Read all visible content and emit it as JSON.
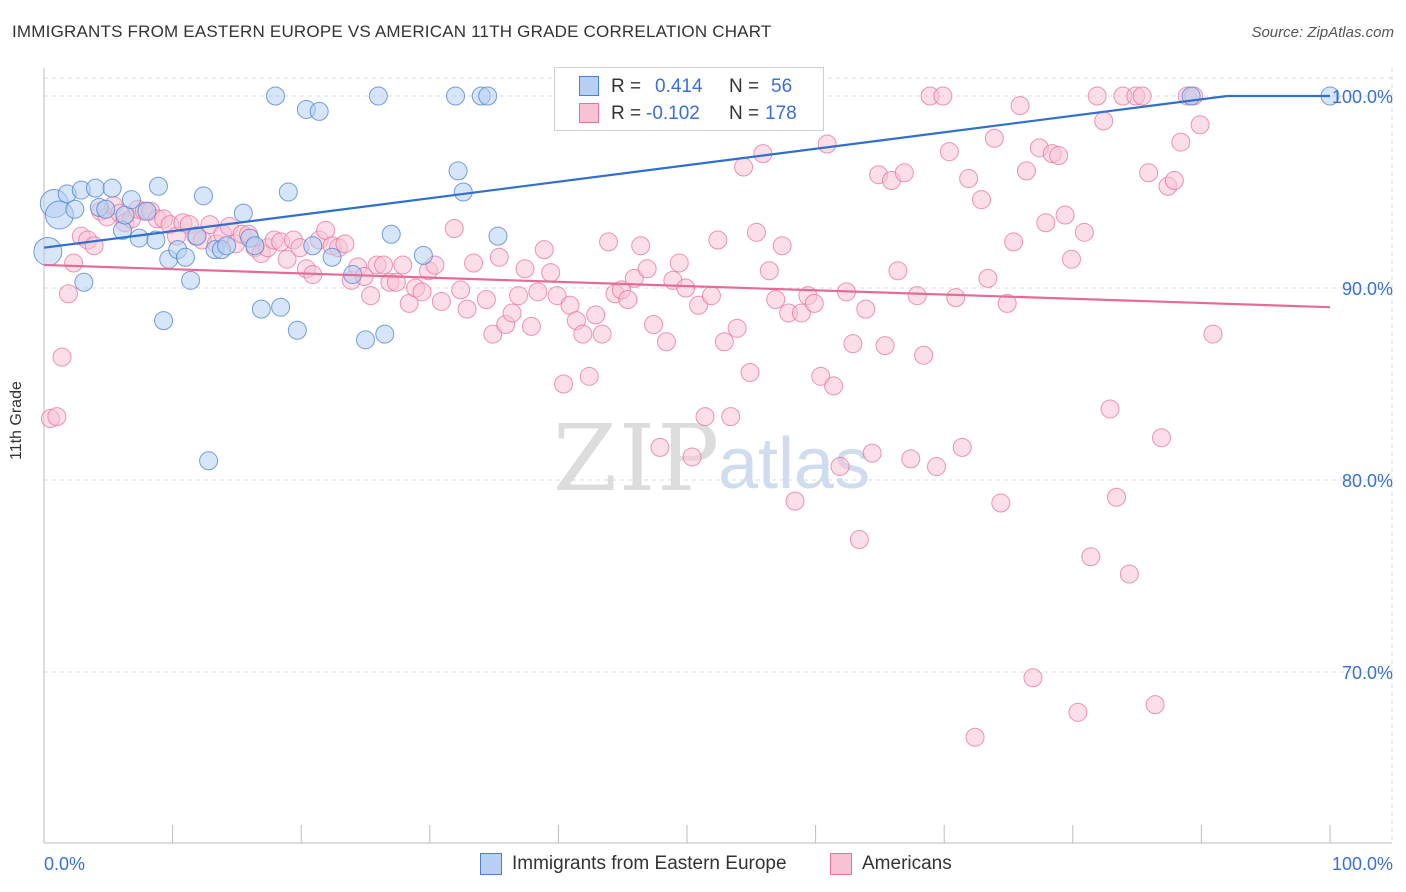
{
  "title": "IMMIGRANTS FROM EASTERN EUROPE VS AMERICAN 11TH GRADE CORRELATION CHART",
  "source": "Source: ZipAtlas.com",
  "watermark": {
    "zip": "ZIP",
    "atlas": "atlas"
  },
  "colors": {
    "blue": "#4a7fd4",
    "blue_fill": "#b7cff2",
    "pink": "#e8719b",
    "pink_fill": "#f7c2d4",
    "axis_text": "#3a6fd8",
    "grid": "#d8d8d8"
  },
  "legend_top": {
    "rows": [
      {
        "r_label": "R =",
        "r_value": "0.414",
        "n_label": "N =",
        "n_value": "56"
      },
      {
        "r_label": "R =",
        "r_value": "-0.102",
        "n_label": "N =",
        "n_value": "178"
      }
    ]
  },
  "legend_bottom": [
    "Immigrants from Eastern Europe",
    "Americans"
  ],
  "chart_data": {
    "type": "scatter",
    "xlabel": "",
    "ylabel": "11th Grade",
    "xlim": [
      0,
      100
    ],
    "ylim": [
      59,
      101.5
    ],
    "x_tick_labels": [
      "0.0%",
      "100.0%"
    ],
    "y_ticks": [
      70,
      80,
      90,
      100
    ],
    "y_tick_labels": [
      "70.0%",
      "80.0%",
      "90.0%",
      "100.0%"
    ],
    "grid": true,
    "series": [
      {
        "name": "Immigrants from Eastern Europe",
        "color": "blue",
        "trend": [
          [
            0,
            92.1
          ],
          [
            92,
            100.0
          ]
        ],
        "points": [
          [
            0.3,
            91.9
          ],
          [
            0.8,
            94.4
          ],
          [
            1.2,
            93.8
          ],
          [
            1.8,
            94.9
          ],
          [
            2.4,
            94.1
          ],
          [
            2.9,
            95.1
          ],
          [
            3.1,
            90.3
          ],
          [
            4.0,
            95.2
          ],
          [
            4.3,
            94.2
          ],
          [
            4.8,
            94.1
          ],
          [
            5.3,
            95.2
          ],
          [
            6.1,
            93.0
          ],
          [
            6.3,
            93.8
          ],
          [
            6.8,
            94.6
          ],
          [
            7.4,
            92.6
          ],
          [
            8.0,
            94.0
          ],
          [
            8.7,
            92.5
          ],
          [
            8.9,
            95.3
          ],
          [
            9.3,
            88.3
          ],
          [
            9.7,
            91.5
          ],
          [
            10.4,
            92.0
          ],
          [
            11.0,
            91.6
          ],
          [
            11.4,
            90.4
          ],
          [
            11.9,
            92.7
          ],
          [
            12.4,
            94.8
          ],
          [
            12.8,
            81.0
          ],
          [
            13.3,
            92.0
          ],
          [
            13.8,
            92.0
          ],
          [
            14.2,
            92.2
          ],
          [
            15.5,
            93.9
          ],
          [
            16.0,
            92.6
          ],
          [
            16.4,
            92.2
          ],
          [
            16.9,
            88.9
          ],
          [
            18.0,
            100.0
          ],
          [
            18.4,
            89.0
          ],
          [
            19.0,
            95.0
          ],
          [
            19.7,
            87.8
          ],
          [
            20.4,
            99.3
          ],
          [
            20.9,
            92.2
          ],
          [
            21.4,
            99.2
          ],
          [
            22.4,
            91.6
          ],
          [
            24.0,
            90.7
          ],
          [
            25.0,
            87.3
          ],
          [
            26.0,
            100.0
          ],
          [
            26.5,
            87.6
          ],
          [
            27.0,
            92.8
          ],
          [
            29.5,
            91.7
          ],
          [
            32.0,
            100.0
          ],
          [
            32.2,
            96.1
          ],
          [
            32.6,
            95.0
          ],
          [
            34.0,
            100.0
          ],
          [
            34.5,
            100.0
          ],
          [
            35.3,
            92.7
          ],
          [
            50.0,
            100.0
          ],
          [
            89.2,
            100.0
          ],
          [
            100.0,
            100.0
          ]
        ]
      },
      {
        "name": "Americans",
        "color": "pink",
        "trend": [
          [
            0,
            91.2
          ],
          [
            100,
            89.0
          ]
        ],
        "points": [
          [
            0.5,
            83.2
          ],
          [
            1.0,
            83.3
          ],
          [
            1.4,
            86.4
          ],
          [
            1.9,
            89.7
          ],
          [
            2.3,
            91.3
          ],
          [
            2.9,
            92.7
          ],
          [
            3.4,
            92.5
          ],
          [
            3.9,
            92.2
          ],
          [
            4.4,
            94.0
          ],
          [
            4.9,
            93.7
          ],
          [
            5.4,
            94.3
          ],
          [
            5.9,
            93.9
          ],
          [
            6.3,
            93.4
          ],
          [
            6.8,
            93.6
          ],
          [
            7.3,
            94.1
          ],
          [
            7.8,
            94.0
          ],
          [
            8.3,
            94.0
          ],
          [
            8.8,
            93.6
          ],
          [
            9.3,
            93.6
          ],
          [
            9.8,
            93.3
          ],
          [
            10.3,
            92.7
          ],
          [
            10.8,
            93.4
          ],
          [
            11.3,
            93.3
          ],
          [
            11.8,
            92.7
          ],
          [
            12.3,
            92.5
          ],
          [
            12.9,
            93.3
          ],
          [
            13.4,
            92.3
          ],
          [
            13.9,
            92.8
          ],
          [
            14.4,
            93.2
          ],
          [
            14.9,
            92.3
          ],
          [
            15.4,
            92.8
          ],
          [
            15.9,
            92.8
          ],
          [
            16.4,
            92.1
          ],
          [
            16.9,
            91.8
          ],
          [
            17.4,
            92.1
          ],
          [
            17.9,
            92.5
          ],
          [
            18.4,
            92.4
          ],
          [
            18.9,
            91.5
          ],
          [
            19.4,
            92.5
          ],
          [
            19.9,
            92.1
          ],
          [
            20.4,
            91.0
          ],
          [
            20.9,
            90.7
          ],
          [
            21.4,
            92.5
          ],
          [
            21.9,
            93.0
          ],
          [
            22.4,
            92.2
          ],
          [
            22.9,
            92.1
          ],
          [
            23.4,
            92.3
          ],
          [
            23.9,
            90.4
          ],
          [
            24.4,
            91.1
          ],
          [
            24.9,
            90.6
          ],
          [
            25.4,
            89.6
          ],
          [
            25.9,
            91.2
          ],
          [
            26.4,
            91.2
          ],
          [
            26.9,
            90.3
          ],
          [
            27.4,
            90.3
          ],
          [
            27.9,
            91.2
          ],
          [
            28.4,
            89.2
          ],
          [
            28.9,
            90.0
          ],
          [
            29.4,
            89.8
          ],
          [
            29.9,
            90.9
          ],
          [
            30.4,
            91.2
          ],
          [
            30.9,
            89.3
          ],
          [
            31.9,
            93.1
          ],
          [
            32.4,
            89.9
          ],
          [
            32.9,
            88.9
          ],
          [
            33.4,
            91.3
          ],
          [
            34.4,
            89.4
          ],
          [
            34.9,
            87.6
          ],
          [
            35.4,
            91.6
          ],
          [
            35.9,
            88.1
          ],
          [
            36.4,
            88.7
          ],
          [
            36.9,
            89.6
          ],
          [
            37.4,
            91.0
          ],
          [
            37.9,
            88.0
          ],
          [
            38.4,
            89.8
          ],
          [
            38.9,
            92.0
          ],
          [
            39.4,
            90.8
          ],
          [
            39.9,
            89.6
          ],
          [
            40.4,
            85.0
          ],
          [
            40.9,
            89.1
          ],
          [
            41.4,
            88.3
          ],
          [
            41.9,
            87.6
          ],
          [
            42.4,
            85.4
          ],
          [
            42.9,
            88.6
          ],
          [
            43.4,
            87.6
          ],
          [
            43.9,
            92.4
          ],
          [
            44.4,
            89.7
          ],
          [
            44.9,
            89.9
          ],
          [
            45.4,
            89.4
          ],
          [
            45.9,
            90.5
          ],
          [
            46.4,
            92.2
          ],
          [
            46.9,
            91.0
          ],
          [
            47.4,
            88.1
          ],
          [
            47.9,
            81.7
          ],
          [
            48.4,
            87.2
          ],
          [
            48.9,
            90.4
          ],
          [
            49.4,
            91.3
          ],
          [
            49.9,
            90.0
          ],
          [
            50.4,
            81.2
          ],
          [
            50.9,
            89.1
          ],
          [
            51.4,
            83.3
          ],
          [
            51.9,
            89.6
          ],
          [
            52.4,
            92.5
          ],
          [
            52.9,
            87.2
          ],
          [
            53.4,
            83.3
          ],
          [
            53.9,
            87.9
          ],
          [
            54.4,
            96.3
          ],
          [
            54.9,
            85.6
          ],
          [
            55.4,
            92.9
          ],
          [
            55.9,
            97.0
          ],
          [
            56.4,
            90.9
          ],
          [
            56.9,
            89.4
          ],
          [
            57.4,
            92.2
          ],
          [
            57.9,
            88.7
          ],
          [
            58.4,
            78.9
          ],
          [
            58.9,
            88.7
          ],
          [
            59.4,
            89.6
          ],
          [
            59.9,
            89.2
          ],
          [
            60.4,
            85.4
          ],
          [
            60.9,
            97.5
          ],
          [
            61.4,
            84.9
          ],
          [
            61.9,
            80.7
          ],
          [
            62.4,
            89.8
          ],
          [
            62.9,
            87.1
          ],
          [
            63.4,
            76.9
          ],
          [
            63.9,
            88.9
          ],
          [
            64.4,
            81.4
          ],
          [
            64.9,
            95.9
          ],
          [
            65.4,
            87.0
          ],
          [
            65.9,
            95.6
          ],
          [
            66.4,
            90.9
          ],
          [
            66.9,
            96.0
          ],
          [
            67.4,
            81.1
          ],
          [
            67.9,
            89.6
          ],
          [
            68.4,
            86.5
          ],
          [
            68.9,
            100.0
          ],
          [
            69.4,
            80.7
          ],
          [
            69.9,
            100.0
          ],
          [
            70.4,
            97.1
          ],
          [
            70.9,
            89.5
          ],
          [
            71.4,
            81.7
          ],
          [
            71.9,
            95.7
          ],
          [
            72.4,
            66.6
          ],
          [
            72.9,
            94.6
          ],
          [
            73.4,
            90.5
          ],
          [
            73.9,
            97.8
          ],
          [
            74.4,
            78.8
          ],
          [
            74.9,
            89.2
          ],
          [
            75.4,
            92.4
          ],
          [
            75.9,
            99.5
          ],
          [
            76.4,
            96.1
          ],
          [
            76.9,
            69.7
          ],
          [
            77.4,
            97.3
          ],
          [
            77.9,
            93.4
          ],
          [
            78.4,
            97.0
          ],
          [
            78.9,
            96.9
          ],
          [
            79.4,
            93.8
          ],
          [
            79.9,
            91.5
          ],
          [
            80.4,
            67.9
          ],
          [
            80.9,
            92.9
          ],
          [
            81.4,
            76.0
          ],
          [
            81.9,
            100.0
          ],
          [
            82.4,
            98.7
          ],
          [
            82.9,
            83.7
          ],
          [
            83.4,
            79.1
          ],
          [
            83.9,
            100.0
          ],
          [
            84.4,
            75.1
          ],
          [
            84.9,
            100.0
          ],
          [
            85.4,
            100.0
          ],
          [
            85.9,
            96.0
          ],
          [
            86.4,
            68.3
          ],
          [
            86.9,
            82.2
          ],
          [
            87.4,
            95.3
          ],
          [
            87.9,
            95.6
          ],
          [
            88.4,
            97.6
          ],
          [
            88.9,
            100.0
          ],
          [
            89.4,
            100.0
          ],
          [
            89.9,
            98.5
          ],
          [
            90.9,
            87.6
          ]
        ]
      }
    ]
  }
}
